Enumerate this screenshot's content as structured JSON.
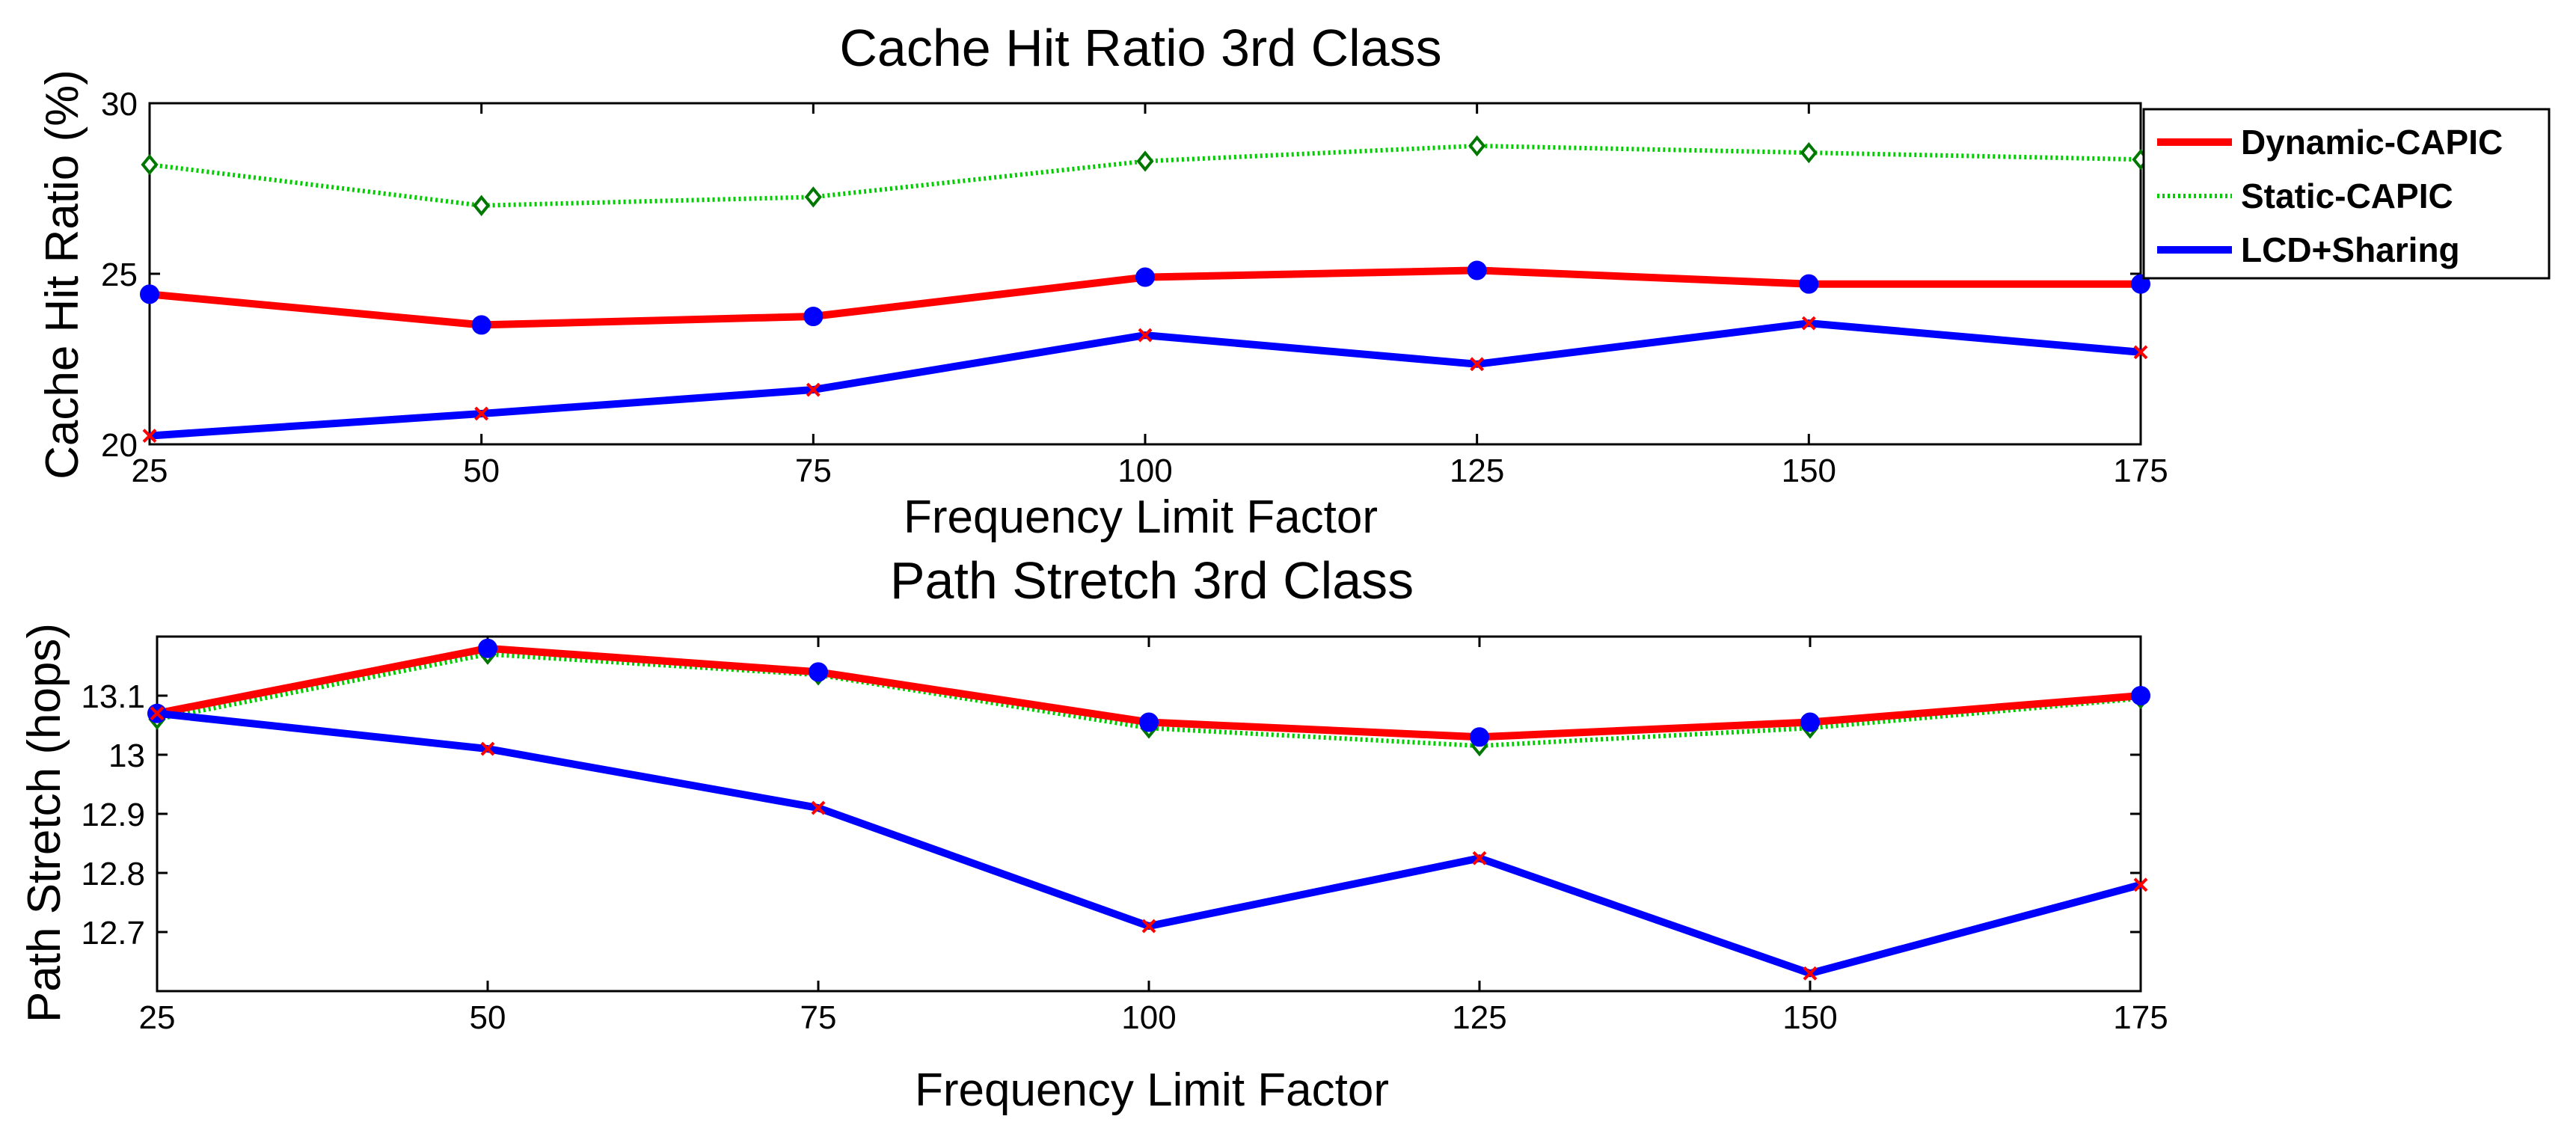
{
  "chart_data": [
    {
      "type": "line",
      "title": "Cache Hit Ratio 3rd Class",
      "xlabel": "Frequency Limit Factor",
      "ylabel": "Cache Hit Ratio (%)",
      "x": [
        25,
        50,
        75,
        100,
        125,
        150,
        175
      ],
      "x_tick_labels": [
        "25",
        "50",
        "75",
        "100",
        "125",
        "150",
        "175"
      ],
      "xlim": [
        25,
        175
      ],
      "ylim": [
        20,
        30
      ],
      "y_ticks": [
        20,
        25,
        30
      ],
      "y_tick_labels": [
        "20",
        "25",
        "30"
      ],
      "grid": false,
      "legend": {
        "placement": "outside-right",
        "entries": [
          "Dynamic-CAPIC",
          "Static-CAPIC",
          "LCD+Sharing"
        ]
      },
      "series": [
        {
          "name": "Dynamic-CAPIC",
          "color": "#ff0000",
          "style": "solid",
          "marker": "o",
          "marker_color": "#0000ff",
          "values": [
            24.4,
            23.5,
            23.75,
            24.9,
            25.1,
            24.7,
            24.7
          ]
        },
        {
          "name": "Static-CAPIC",
          "color": "#00cc00",
          "style": "dotted",
          "marker": "d",
          "marker_color": "#007700",
          "values": [
            28.2,
            27.0,
            27.25,
            28.3,
            28.75,
            28.55,
            28.35
          ]
        },
        {
          "name": "LCD+Sharing",
          "color": "#0000ff",
          "style": "solid",
          "marker": "x",
          "marker_color": "#ff0000",
          "values": [
            20.25,
            20.9,
            21.6,
            23.2,
            22.35,
            23.55,
            22.7
          ]
        }
      ]
    },
    {
      "type": "line",
      "title": "Path Stretch 3rd Class",
      "xlabel": "Frequency Limit Factor",
      "ylabel": "Path Stretch (hops)",
      "x": [
        25,
        50,
        75,
        100,
        125,
        150,
        175
      ],
      "x_tick_labels": [
        "25",
        "50",
        "75",
        "100",
        "125",
        "150",
        "175"
      ],
      "xlim": [
        25,
        175
      ],
      "ylim": [
        12.6,
        13.2
      ],
      "y_ticks": [
        12.7,
        12.8,
        12.9,
        13.0,
        13.1
      ],
      "y_tick_labels": [
        "12.7",
        "12.8",
        "12.9",
        "13",
        "13.1"
      ],
      "grid": false,
      "series": [
        {
          "name": "Dynamic-CAPIC",
          "color": "#ff0000",
          "style": "solid",
          "marker": "o",
          "marker_color": "#0000ff",
          "values": [
            13.07,
            13.18,
            13.14,
            13.055,
            13.03,
            13.055,
            13.1
          ]
        },
        {
          "name": "Static-CAPIC",
          "color": "#00cc00",
          "style": "dotted",
          "marker": "d",
          "marker_color": "#007700",
          "values": [
            13.06,
            13.17,
            13.135,
            13.045,
            13.015,
            13.045,
            13.095
          ]
        },
        {
          "name": "LCD+Sharing",
          "color": "#0000ff",
          "style": "solid",
          "marker": "x",
          "marker_color": "#ff0000",
          "values": [
            13.07,
            13.01,
            12.91,
            12.71,
            12.825,
            12.63,
            12.78
          ]
        }
      ]
    }
  ]
}
